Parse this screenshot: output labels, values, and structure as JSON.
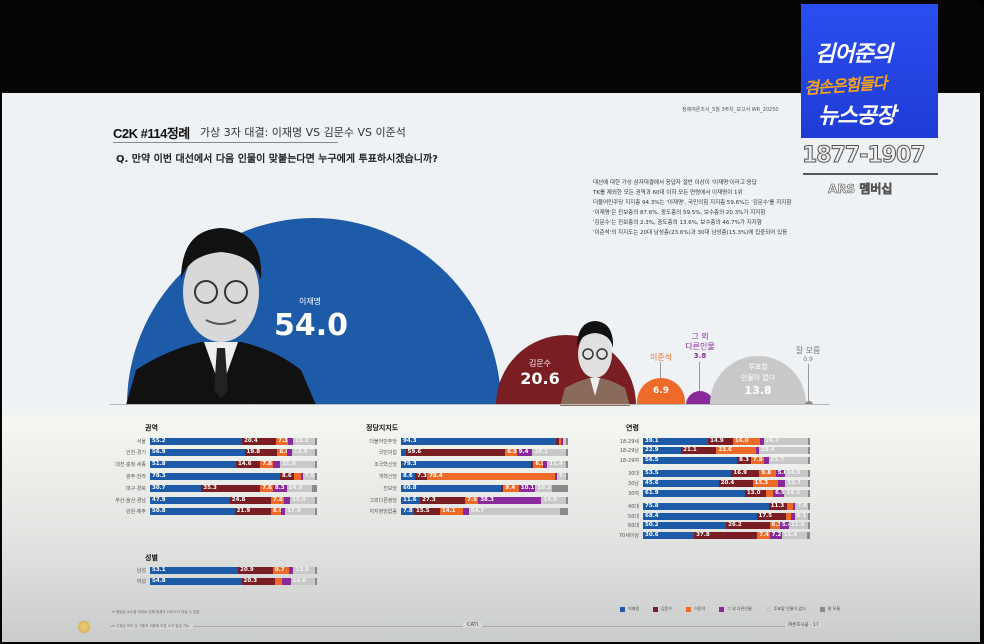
{
  "header": {
    "title": "C2K #114정례",
    "subtitle": "가상 3자 대결: 이재명 VS 김문수 VS 이준석",
    "question": "Q. 만약 이번 대선에서 다음 인물이 맞붙는다면 누구에게 투표하시겠습니까?",
    "report_meta": "정례여론조사_5월 3주차_보고서   WR_20250"
  },
  "badge": {
    "line1": "김어준의",
    "line2": "겸손은힘들다",
    "line3": "뉴스공장",
    "phone": "1877-1907",
    "ars": "ARS 멤버십"
  },
  "description": [
    "대선에 대한 가상 삼자대결에서 응답자 절반 이상이 '이재명'이라고 응답",
    "TK를 제외한 모든 권역과 60대 이하 모든 연령에서 이재명이 1위",
    "더불어민주당 지지층 94.3%는 '이재명', 국민의힘 지지층 59.6%는 '김문수'를 지지함",
    "'이재명'은 진보층의 87.6%, 중도층의 59.5%, 보수층의 20.3%가 지지함",
    "'김문수'는 진보층의 2.3%, 중도층의 13.6%, 보수층의 46.7%가 지지함",
    "'이준석'의 지지도는 20대 남성층(23.6%)과 30대 남성층(15.3%)에 집중되어 있음"
  ],
  "colors": {
    "lee_jm": "#1d5aa8",
    "kim": "#7a1e24",
    "lee_js": "#ee6a28",
    "other": "#8a2a9a",
    "none": "#c8c8c8",
    "dunno": "#8a8a8a",
    "badge_blue": "#2a4ff0",
    "badge_orange": "#f5a31a"
  },
  "chart_data": [
    {
      "type": "area",
      "title": "가상 3자 대결: 이재명 VS 김문수 VS 이준석",
      "categories": [
        "이재명",
        "김문수",
        "이준석",
        "그 외 다른인물",
        "투표할 인물이 없다",
        "잘 모름"
      ],
      "values": [
        54.0,
        20.6,
        6.9,
        3.8,
        13.8,
        0.9
      ],
      "labels": {
        "lee_jm": "이재명",
        "lee_jm_val": "54.0",
        "kim": "김문수",
        "kim_val": "20.6",
        "lee_js": "이준석",
        "lee_js_val": "6.9",
        "other1": "그 외",
        "other2": "다른인물",
        "other_val": "3.8",
        "none1": "투표할",
        "none2": "인물이 없다",
        "none_val": "13.8",
        "dunno": "잘 모름",
        "dunno_val": "0.9"
      }
    },
    {
      "type": "bar",
      "stacked": true,
      "title": "권역",
      "series_names": [
        "이재명",
        "김문수",
        "이준석",
        "그 외 다른인물",
        "투표할 인물이 없다",
        "잘 모름"
      ],
      "categories": [
        "서울",
        "인천·경기",
        "대전·충청·세종",
        "광주·전라",
        "대구·경북",
        "부산·울산·경남",
        "강원·제주"
      ],
      "rows": [
        [
          55.2,
          20.4,
          7.3,
          2.8,
          13.2,
          1.1
        ],
        [
          56.9,
          19.8,
          6.0,
          2.7,
          13.9,
          0.7
        ],
        [
          51.8,
          14.6,
          7.8,
          4.2,
          21.0,
          0.6
        ],
        [
          78.3,
          8.6,
          3.8,
          1.2,
          7.5,
          0.6
        ],
        [
          30.7,
          35.3,
          7.6,
          8.3,
          14.9,
          3.2
        ],
        [
          47.9,
          24.8,
          7.8,
          3.6,
          15.0,
          0.9
        ],
        [
          50.8,
          21.9,
          6.0,
          2.5,
          17.9,
          0.9
        ]
      ]
    },
    {
      "type": "bar",
      "stacked": true,
      "title": "성별",
      "series_names": [
        "이재명",
        "김문수",
        "이준석",
        "그 외 다른인물",
        "투표할 인물이 없다",
        "잘 모름"
      ],
      "categories": [
        "남성",
        "여성"
      ],
      "rows": [
        [
          53.1,
          20.9,
          9.7,
          2.7,
          13.0,
          0.6
        ],
        [
          54.8,
          20.3,
          4.2,
          4.9,
          14.6,
          1.2
        ]
      ]
    },
    {
      "type": "bar",
      "stacked": true,
      "title": "정당지지도",
      "series_names": [
        "이재명",
        "김문수",
        "이준석",
        "그 외 다른인물",
        "투표할 인물이 없다",
        "잘 모름"
      ],
      "categories": [
        "더불어민주당",
        "국민의힘",
        "조국혁신당",
        "개혁신당",
        "진보당",
        "그외다른정당",
        "지지정당없음"
      ],
      "rows": [
        [
          94.3,
          1.5,
          1.1,
          0.8,
          2.0,
          0.3
        ],
        [
          2.8,
          59.6,
          6.9,
          9.4,
          20.1,
          1.2
        ],
        [
          79.3,
          0.8,
          6.0,
          2.5,
          11.4,
          0.0
        ],
        [
          8.6,
          7.3,
          78.4,
          0.3,
          5.4,
          0.0
        ],
        [
          60.8,
          0.0,
          9.4,
          10.1,
          10.1,
          9.6
        ],
        [
          11.6,
          27.3,
          7.9,
          38.3,
          14.9,
          0.0
        ],
        [
          7.8,
          15.5,
          14.1,
          3.2,
          54.7,
          4.7
        ]
      ]
    },
    {
      "type": "bar",
      "stacked": true,
      "title": "연령",
      "series_names": [
        "이재명",
        "김문수",
        "이준석",
        "그 외 다른인물",
        "투표할 인물이 없다",
        "잘 모름"
      ],
      "categories": [
        "18-29세",
        "18-29남",
        "18-29여",
        "30대",
        "30남",
        "30여",
        "40대",
        "50대",
        "60대",
        "70세이상"
      ],
      "rows": [
        [
          39.1,
          14.9,
          16.0,
          2.3,
          26.7,
          1.0
        ],
        [
          22.9,
          21.1,
          23.6,
          2.0,
          29.4,
          1.0
        ],
        [
          56.5,
          8.3,
          7.9,
          2.6,
          23.7,
          1.0
        ],
        [
          53.5,
          16.9,
          9.8,
          5.6,
          14.0,
          0.2
        ],
        [
          45.6,
          20.4,
          15.3,
          4.4,
          13.7,
          0.6
        ],
        [
          61.9,
          13.0,
          4.2,
          6.9,
          14.3,
          0.7
        ],
        [
          75.8,
          11.3,
          3.3,
          1.5,
          7.6,
          0.5
        ],
        [
          68.4,
          17.5,
          3.2,
          2.2,
          8.1,
          0.6
        ],
        [
          50.2,
          26.2,
          6.3,
          5.4,
          11.5,
          0.4
        ],
        [
          30.6,
          37.8,
          7.4,
          7.2,
          15.4,
          1.6
        ]
      ]
    }
  ],
  "sections": {
    "region": "권역",
    "gender": "성별",
    "party": "정당지지도",
    "age": "연령"
  },
  "legend": [
    "이재명",
    "김문수",
    "이준석",
    "그 외 다른인물",
    "투표할 인물이 없다",
    "잘 모름"
  ],
  "footer": {
    "note1": "※ 응답값 소수점 처리로 인해 합계가 100%가 아닐 수 있음",
    "note2": "※ 무응답 처리 및 가중치 적용에 따른 오차 발생 가능",
    "method": "CATI",
    "page": "여론조사꽃 · 17"
  }
}
